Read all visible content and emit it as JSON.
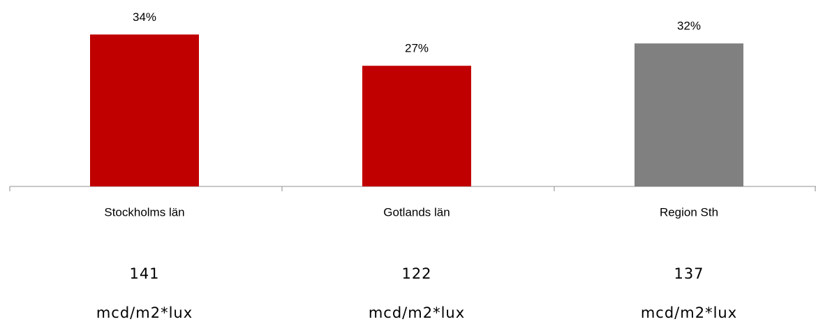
{
  "chart_data": {
    "type": "bar",
    "categories": [
      "Stockholms län",
      "Gotlands län",
      "Region Sth"
    ],
    "values": [
      34,
      27,
      32
    ],
    "value_labels": [
      "34%",
      "27%",
      "32%"
    ],
    "colors": [
      "#c00000",
      "#c00000",
      "#808080"
    ],
    "luminance": {
      "values": [
        141,
        122,
        137
      ],
      "units": [
        "mcd/m2*lux",
        "mcd/m2*lux",
        "mcd/m2*lux"
      ]
    }
  }
}
